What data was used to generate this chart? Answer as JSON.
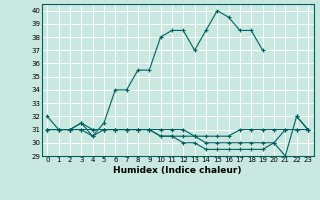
{
  "xlabel": "Humidex (Indice chaleur)",
  "ylabel": "",
  "xlim": [
    -0.5,
    23.5
  ],
  "ylim": [
    29,
    40.5
  ],
  "yticks": [
    29,
    30,
    31,
    32,
    33,
    34,
    35,
    36,
    37,
    38,
    39,
    40
  ],
  "xticks": [
    0,
    1,
    2,
    3,
    4,
    5,
    6,
    7,
    8,
    9,
    10,
    11,
    12,
    13,
    14,
    15,
    16,
    17,
    18,
    19,
    20,
    21,
    22,
    23
  ],
  "bg_color": "#c8e8e0",
  "line_color": "#006060",
  "grid_color": "#ffffff",
  "lines": [
    {
      "x": [
        0,
        1,
        2,
        3,
        4,
        5,
        6,
        7,
        8,
        9,
        10,
        11,
        12,
        13,
        14,
        15,
        16,
        17,
        18,
        19,
        20,
        21,
        22,
        23
      ],
      "y": [
        32,
        31,
        31,
        31.5,
        30.5,
        31.5,
        34,
        34,
        35.5,
        35.5,
        38,
        38.5,
        38.5,
        37,
        38.5,
        40,
        39.5,
        38.5,
        38.5,
        37,
        null,
        null,
        32,
        31
      ]
    },
    {
      "x": [
        0,
        1,
        2,
        3,
        4,
        5,
        6,
        7,
        8,
        9,
        10,
        11,
        12,
        13,
        14,
        15,
        16,
        17,
        18,
        19,
        20,
        21,
        22,
        23
      ],
      "y": [
        31,
        31,
        31,
        31.5,
        31,
        31,
        31,
        31,
        31,
        31,
        30.5,
        30.5,
        30.5,
        30.5,
        30,
        30,
        30,
        30,
        30,
        30,
        30,
        31,
        31,
        31
      ]
    },
    {
      "x": [
        0,
        1,
        2,
        3,
        4,
        5,
        6,
        7,
        8,
        9,
        10,
        11,
        12,
        13,
        14,
        15,
        16,
        17,
        18,
        19,
        20,
        21,
        22,
        23
      ],
      "y": [
        31,
        31,
        31,
        31,
        30.5,
        31,
        31,
        31,
        31,
        31,
        30.5,
        30.5,
        30,
        30,
        29.5,
        29.5,
        29.5,
        29.5,
        29.5,
        29.5,
        30,
        29,
        32,
        31
      ]
    },
    {
      "x": [
        0,
        1,
        2,
        3,
        4,
        5,
        6,
        7,
        8,
        9,
        10,
        11,
        12,
        13,
        14,
        15,
        16,
        17,
        18,
        19,
        20,
        21,
        22,
        23
      ],
      "y": [
        31,
        31,
        31,
        31,
        31,
        31,
        31,
        31,
        31,
        31,
        31,
        31,
        31,
        30.5,
        30.5,
        30.5,
        30.5,
        31,
        31,
        31,
        31,
        31,
        31,
        31
      ]
    }
  ]
}
